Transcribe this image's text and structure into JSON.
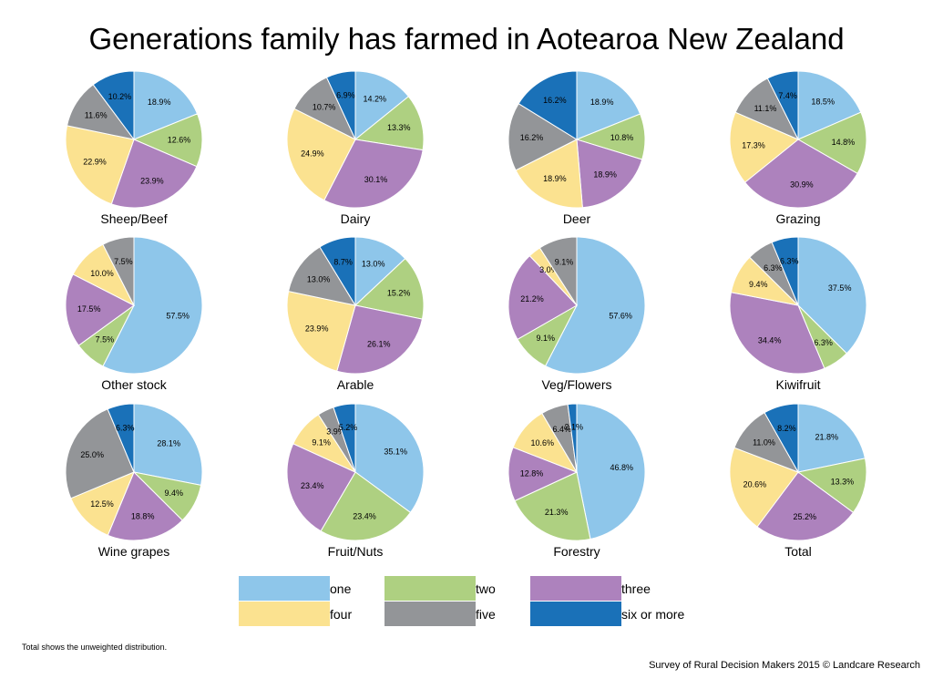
{
  "title": "Generations family has farmed in Aotearoa New Zealand",
  "legend": [
    {
      "label": "one",
      "color": "#8ec6ea"
    },
    {
      "label": "two",
      "color": "#aed081"
    },
    {
      "label": "three",
      "color": "#ad82bd"
    },
    {
      "label": "four",
      "color": "#fbe290"
    },
    {
      "label": "five",
      "color": "#939598"
    },
    {
      "label": "six or more",
      "color": "#1a71b8"
    }
  ],
  "footnote": "Total shows the unweighted distribution.",
  "credit": "Survey of Rural Decision Makers 2015 © Landcare Research",
  "chart_data": [
    {
      "type": "pie",
      "title": "Sheep/Beef",
      "labels": [
        "one",
        "two",
        "three",
        "four",
        "five",
        "six or more"
      ],
      "values": [
        18.9,
        12.6,
        23.9,
        22.9,
        11.6,
        10.2
      ],
      "value_labels": [
        "18.9%",
        "12.6%",
        "23.9%",
        "22.9%",
        "11.6%",
        "10.2%"
      ]
    },
    {
      "type": "pie",
      "title": "Dairy",
      "labels": [
        "one",
        "two",
        "three",
        "four",
        "five",
        "six or more"
      ],
      "values": [
        14.2,
        13.3,
        30.1,
        24.9,
        10.7,
        6.9
      ],
      "value_labels": [
        "14.2%",
        "13.3%",
        "30.1%",
        "24.9%",
        "10.7%",
        "6.9%"
      ]
    },
    {
      "type": "pie",
      "title": "Deer",
      "labels": [
        "one",
        "two",
        "three",
        "four",
        "five",
        "six or more"
      ],
      "values": [
        18.9,
        10.8,
        18.9,
        18.9,
        16.2,
        16.2
      ],
      "value_labels": [
        "18.9%",
        "10.8%",
        "18.9%",
        "18.9%",
        "16.2%",
        "16.2%"
      ]
    },
    {
      "type": "pie",
      "title": "Grazing",
      "labels": [
        "one",
        "two",
        "three",
        "four",
        "five",
        "six or more"
      ],
      "values": [
        18.5,
        14.8,
        30.9,
        17.3,
        11.1,
        7.4
      ],
      "value_labels": [
        "18.5%",
        "14.8%",
        "30.9%",
        "17.3%",
        "11.1%",
        "7.4%"
      ]
    },
    {
      "type": "pie",
      "title": "Other stock",
      "labels": [
        "one",
        "two",
        "three",
        "four",
        "five",
        "six or more"
      ],
      "values": [
        57.5,
        7.5,
        17.5,
        10.0,
        7.5,
        0
      ],
      "value_labels": [
        "57.5%",
        "7.5%",
        "17.5%",
        "10.0%",
        "7.5%",
        ""
      ]
    },
    {
      "type": "pie",
      "title": "Arable",
      "labels": [
        "one",
        "two",
        "three",
        "four",
        "five",
        "six or more"
      ],
      "values": [
        13.0,
        15.2,
        26.1,
        23.9,
        13.0,
        8.7
      ],
      "value_labels": [
        "13.0%",
        "15.2%",
        "26.1%",
        "23.9%",
        "13.0%",
        "8.7%"
      ]
    },
    {
      "type": "pie",
      "title": "Veg/Flowers",
      "labels": [
        "one",
        "two",
        "three",
        "four",
        "five",
        "six or more"
      ],
      "values": [
        57.6,
        9.1,
        21.2,
        3.0,
        9.1,
        0
      ],
      "value_labels": [
        "57.6%",
        "9.1%",
        "21.2%",
        "3.0%",
        "9.1%",
        ""
      ]
    },
    {
      "type": "pie",
      "title": "Kiwifruit",
      "labels": [
        "one",
        "two",
        "three",
        "four",
        "five",
        "six or more"
      ],
      "values": [
        37.5,
        6.3,
        34.4,
        9.4,
        6.3,
        6.3
      ],
      "value_labels": [
        "37.5%",
        "6.3%",
        "34.4%",
        "9.4%",
        "6.3%",
        "6.3%"
      ]
    },
    {
      "type": "pie",
      "title": "Wine grapes",
      "labels": [
        "one",
        "two",
        "three",
        "four",
        "five",
        "six or more"
      ],
      "values": [
        28.1,
        9.4,
        18.8,
        12.5,
        25.0,
        6.3
      ],
      "value_labels": [
        "28.1%",
        "9.4%",
        "18.8%",
        "12.5%",
        "25.0%",
        "6.3%"
      ]
    },
    {
      "type": "pie",
      "title": "Fruit/Nuts",
      "labels": [
        "one",
        "two",
        "three",
        "four",
        "five",
        "six or more"
      ],
      "values": [
        35.1,
        23.4,
        23.4,
        9.1,
        3.9,
        5.2
      ],
      "value_labels": [
        "35.1%",
        "23.4%",
        "23.4%",
        "9.1%",
        "3.9%",
        "5.2%"
      ]
    },
    {
      "type": "pie",
      "title": "Forestry",
      "labels": [
        "one",
        "two",
        "three",
        "four",
        "five",
        "six or more"
      ],
      "values": [
        46.8,
        21.3,
        12.8,
        10.6,
        6.4,
        2.1
      ],
      "value_labels": [
        "46.8%",
        "21.3%",
        "12.8%",
        "10.6%",
        "6.4%",
        "2.1%"
      ]
    },
    {
      "type": "pie",
      "title": "Total",
      "labels": [
        "one",
        "two",
        "three",
        "four",
        "five",
        "six or more"
      ],
      "values": [
        21.8,
        13.3,
        25.2,
        20.6,
        11.0,
        8.2
      ],
      "value_labels": [
        "21.8%",
        "13.3%",
        "25.2%",
        "20.6%",
        "11.0%",
        "8.2%"
      ]
    }
  ]
}
